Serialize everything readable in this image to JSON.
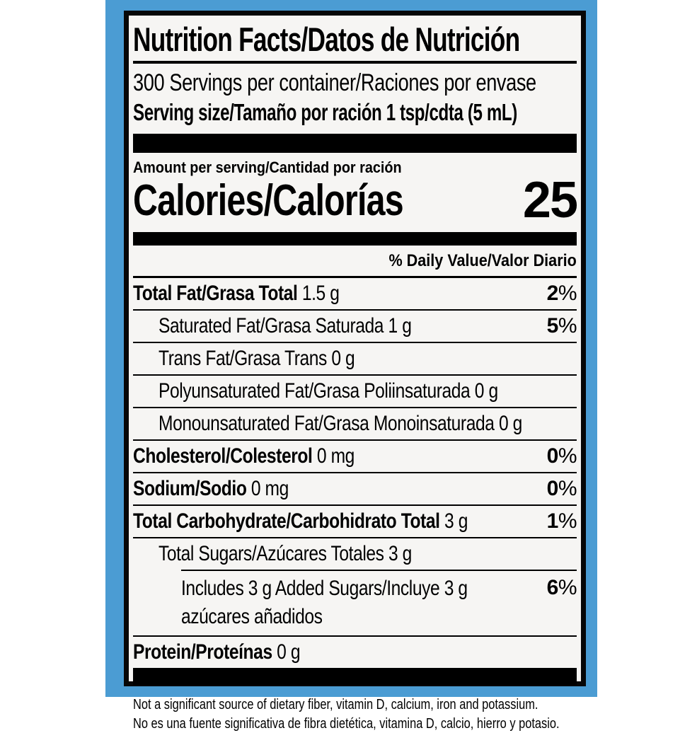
{
  "colors": {
    "frame_blue": "#4B9CD3",
    "label_bg": "#F6F5F3",
    "ink": "#000000"
  },
  "label": {
    "title": "Nutrition Facts/Datos de Nutrición",
    "servings_per_container": "300 Servings per container/Raciones por envase",
    "serving_size": "Serving size/Tamaño por ración 1 tsp/cdta (5 mL)",
    "amount_per_serving": "Amount per serving/Cantidad por ración",
    "calories_label": "Calories/Calorías",
    "calories_value": "25",
    "daily_value_header": "% Daily Value/Valor Diario",
    "footnote_en": "Not a significant source of dietary fiber, vitamin D, calcium, iron and potassium.",
    "footnote_es": "No es una fuente significativa de fibra dietética, vitamina D, calcio, hierro y potasio."
  },
  "rows": [
    {
      "bold": "Total Fat/Grasa Total",
      "normal": " 1.5 g",
      "dv": "2",
      "pct": "%"
    },
    {
      "normal": "Saturated Fat/Grasa Saturada 1 g",
      "dv": "5",
      "pct": "%"
    },
    {
      "normal": "Trans Fat/Grasa Trans 0 g"
    },
    {
      "normal": "Polyunsaturated Fat/Grasa Poliinsaturada 0 g"
    },
    {
      "normal": "Monounsaturated Fat/Grasa Monoinsaturada 0 g"
    },
    {
      "bold": "Cholesterol/Colesterol",
      "normal": " 0 mg",
      "dv": "0",
      "pct": "%"
    },
    {
      "bold": "Sodium/Sodio",
      "normal": " 0 mg",
      "dv": "0",
      "pct": "%"
    },
    {
      "bold": "Total Carbohydrate/Carbohidrato Total",
      "normal": " 3 g",
      "dv": "1",
      "pct": "%"
    },
    {
      "normal": "Total Sugars/Azúcares Totales 3 g"
    },
    {
      "normal": "Includes 3 g Added Sugars/Incluye 3 g",
      "normal2": "azúcares añadidos",
      "dv": "6",
      "pct": "%"
    },
    {
      "bold": "Protein/Proteínas",
      "normal": " 0 g"
    }
  ]
}
